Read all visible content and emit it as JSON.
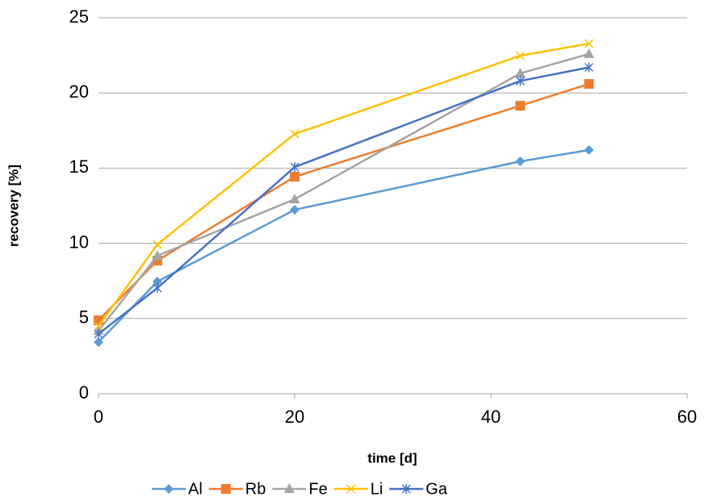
{
  "chart_data": {
    "type": "line",
    "x_label": "time [d]",
    "y_label": "recovery [%]",
    "x": [
      0,
      6,
      20,
      43,
      50
    ],
    "series": [
      {
        "name": "Al",
        "color": "#5b9bd5",
        "marker": "diamond",
        "values": [
          3.43,
          7.46,
          12.23,
          15.45,
          16.2
        ]
      },
      {
        "name": "Rb",
        "color": "#ed7d31",
        "marker": "square",
        "values": [
          4.88,
          8.85,
          14.43,
          19.15,
          20.6
        ]
      },
      {
        "name": "Fe",
        "color": "#a5a5a5",
        "marker": "triangle",
        "values": [
          4.18,
          9.17,
          12.93,
          21.3,
          22.59
        ]
      },
      {
        "name": "Li",
        "color": "#ffc000",
        "marker": "x",
        "values": [
          4.5,
          9.92,
          17.27,
          22.48,
          23.28
        ]
      },
      {
        "name": "Ga",
        "color": "#4472c4",
        "marker": "star",
        "values": [
          3.97,
          7.03,
          15.07,
          20.8,
          21.7
        ]
      }
    ],
    "xlim": [
      0,
      60
    ],
    "xticks": [
      0,
      20,
      40,
      60
    ],
    "ylim": [
      0,
      25
    ],
    "yticks": [
      0,
      5,
      10,
      15,
      20,
      25
    ],
    "grid": true,
    "legend": "bottom"
  }
}
